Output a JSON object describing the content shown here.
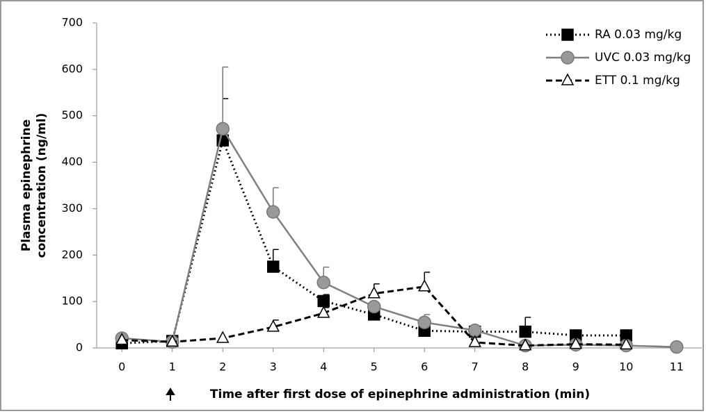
{
  "chart_data": {
    "type": "line",
    "ylabel": [
      "Plasma epinephrine",
      "concentration (ng/ml)"
    ],
    "xlabel": "Time after first dose of epinephrine administration (min)",
    "x": [
      0,
      1,
      2,
      3,
      4,
      5,
      6,
      7,
      8,
      9,
      10,
      11
    ],
    "xlim": [
      -0.5,
      11.5
    ],
    "xticks": [
      0,
      1,
      2,
      3,
      4,
      5,
      6,
      7,
      8,
      9,
      10,
      11
    ],
    "ylim": [
      0,
      700
    ],
    "yticks": [
      0,
      100,
      200,
      300,
      400,
      500,
      600,
      700
    ],
    "legend": "top-right",
    "series": [
      {
        "name": "RA 0.03 mg/kg",
        "color": "#000000",
        "dash": "dotted",
        "marker": "square",
        "values": [
          10,
          15,
          447,
          175,
          101,
          72,
          37,
          35,
          35,
          27,
          27,
          null
        ],
        "errors": [
          null,
          null,
          90,
          37,
          14,
          null,
          null,
          null,
          31,
          null,
          null,
          null
        ]
      },
      {
        "name": "UVC 0.03 mg/kg",
        "color": "#7f7f7f",
        "dash": "solid",
        "marker": "circle",
        "values": [
          21,
          13,
          472,
          293,
          141,
          89,
          55,
          38,
          5,
          7,
          5,
          2
        ],
        "errors": [
          null,
          null,
          133,
          52,
          33,
          null,
          17,
          null,
          null,
          null,
          null,
          null
        ]
      },
      {
        "name": "ETT 0.1 mg/kg",
        "color": "#000000",
        "dash": "dashed",
        "marker": "triangle",
        "values": [
          17,
          13,
          21,
          45,
          75,
          117,
          132,
          12,
          5,
          8,
          7,
          null
        ],
        "errors": [
          null,
          null,
          null,
          15,
          12,
          21,
          31,
          null,
          null,
          null,
          null,
          null
        ]
      }
    ]
  }
}
